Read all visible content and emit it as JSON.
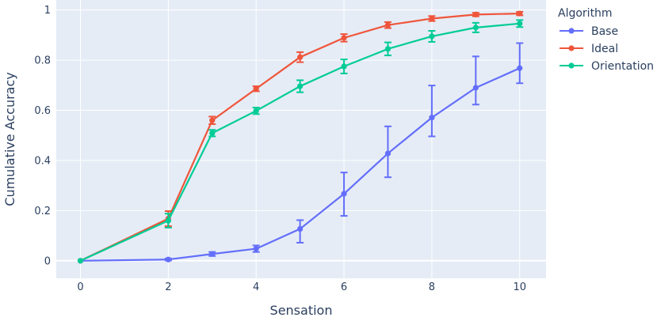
{
  "chart_data": {
    "type": "line",
    "xlabel": "Sensation",
    "ylabel": "Cumulative Accuracy",
    "xlim": [
      -0.55,
      10.6
    ],
    "ylim": [
      -0.07,
      1.04
    ],
    "x_ticks": [
      0,
      2,
      4,
      6,
      8,
      10
    ],
    "y_ticks": [
      0,
      0.2,
      0.4,
      0.6,
      0.8,
      1
    ],
    "x_tick_labels": [
      "0",
      "2",
      "4",
      "6",
      "8",
      "10"
    ],
    "y_tick_labels": [
      "0",
      "0.2",
      "0.4",
      "0.6",
      "0.8",
      "1"
    ],
    "grid": true,
    "legend_placement": "top-right-outside",
    "legend_title": "Algorithm",
    "plot_background": "#e5ecf6",
    "series": [
      {
        "name": "Base",
        "color": "#636efa",
        "x": [
          0,
          2,
          3,
          4,
          5,
          6,
          7,
          8,
          9,
          10
        ],
        "y": [
          0,
          0.005,
          0.027,
          0.048,
          0.127,
          0.267,
          0.428,
          0.571,
          0.69,
          0.768
        ],
        "err_low": [
          0,
          0.004,
          0.008,
          0.013,
          0.055,
          0.088,
          0.095,
          0.075,
          0.067,
          0.06
        ],
        "err_high": [
          0,
          0.004,
          0.008,
          0.013,
          0.035,
          0.085,
          0.108,
          0.128,
          0.125,
          0.1
        ]
      },
      {
        "name": "Ideal",
        "color": "#ef553b",
        "x": [
          0,
          2,
          3,
          4,
          5,
          6,
          7,
          8,
          9,
          10
        ],
        "y": [
          0,
          0.168,
          0.56,
          0.686,
          0.812,
          0.889,
          0.94,
          0.966,
          0.982,
          0.986
        ],
        "err_low": [
          0,
          0.03,
          0.015,
          0.01,
          0.02,
          0.015,
          0.012,
          0.01,
          0.007,
          0.007
        ],
        "err_high": [
          0,
          0.03,
          0.015,
          0.01,
          0.02,
          0.015,
          0.012,
          0.01,
          0.007,
          0.007
        ]
      },
      {
        "name": "Orientation",
        "color": "#00cc96",
        "x": [
          0,
          2,
          3,
          4,
          5,
          6,
          7,
          8,
          9,
          10
        ],
        "y": [
          0,
          0.16,
          0.509,
          0.598,
          0.696,
          0.775,
          0.845,
          0.895,
          0.93,
          0.946
        ],
        "err_low": [
          0,
          0.028,
          0.013,
          0.013,
          0.024,
          0.028,
          0.026,
          0.022,
          0.019,
          0.014
        ],
        "err_high": [
          0,
          0.028,
          0.013,
          0.013,
          0.024,
          0.028,
          0.026,
          0.022,
          0.019,
          0.014
        ]
      }
    ]
  }
}
